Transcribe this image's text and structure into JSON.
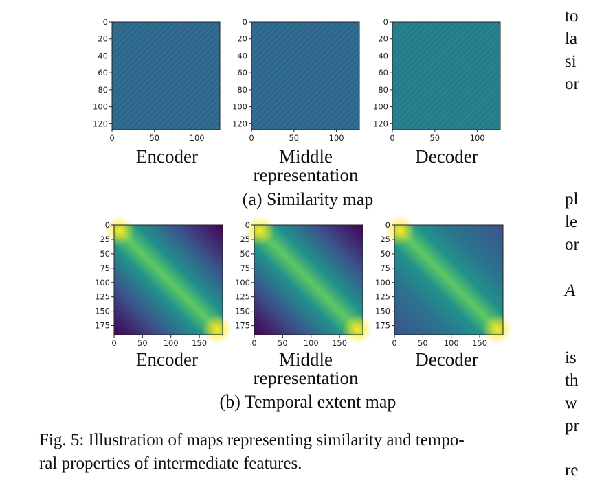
{
  "figure": {
    "caption_line1": "Fig. 5: Illustration of maps representing similarity and tempo-",
    "caption_line2": "ral properties of intermediate features."
  },
  "panel_a": {
    "caption": "(a) Similarity map",
    "maps": [
      {
        "label": [
          "Encoder"
        ]
      },
      {
        "label": [
          "Middle",
          "representation"
        ]
      },
      {
        "label": [
          "Decoder"
        ]
      }
    ]
  },
  "panel_b": {
    "caption": "(b) Temporal extent map",
    "maps": [
      {
        "label": [
          "Encoder"
        ]
      },
      {
        "label": [
          "Middle",
          "representation"
        ]
      },
      {
        "label": [
          "Decoder"
        ]
      }
    ]
  },
  "right_column_fragments": [
    "to",
    "la",
    "si",
    "or",
    "pl",
    "le",
    "or",
    "A",
    "is",
    "th",
    "w",
    "pr",
    "re"
  ],
  "chart_data": [
    {
      "type": "heatmap",
      "panel": "a",
      "xlabel": "Encoder",
      "x_ticks": [
        0,
        50,
        100
      ],
      "y_ticks": [
        0,
        20,
        40,
        60,
        80,
        100,
        120
      ],
      "xlim": [
        0,
        127
      ],
      "ylim": [
        127,
        0
      ],
      "pattern": "diagonal stripes",
      "colormap": "viridis"
    },
    {
      "type": "heatmap",
      "panel": "a",
      "xlabel": "Middle representation",
      "x_ticks": [
        0,
        50,
        100
      ],
      "y_ticks": [
        0,
        20,
        40,
        60,
        80,
        100,
        120
      ],
      "xlim": [
        0,
        127
      ],
      "ylim": [
        127,
        0
      ],
      "pattern": "diagonal stripes",
      "colormap": "viridis"
    },
    {
      "type": "heatmap",
      "panel": "a",
      "xlabel": "Decoder",
      "x_ticks": [
        0,
        50,
        100
      ],
      "y_ticks": [
        0,
        20,
        40,
        60,
        80,
        100,
        120
      ],
      "xlim": [
        0,
        127
      ],
      "ylim": [
        127,
        0
      ],
      "pattern": "diagonal stripes",
      "colormap": "viridis"
    },
    {
      "type": "heatmap",
      "panel": "b",
      "xlabel": "Encoder",
      "x_ticks": [
        0,
        50,
        100,
        150
      ],
      "y_ticks": [
        0,
        25,
        50,
        75,
        100,
        125,
        150,
        175
      ],
      "xlim": [
        0,
        191
      ],
      "ylim": [
        191,
        0
      ],
      "pattern": "diagonal band",
      "colormap": "viridis"
    },
    {
      "type": "heatmap",
      "panel": "b",
      "xlabel": "Middle representation",
      "x_ticks": [
        0,
        50,
        100,
        150
      ],
      "y_ticks": [
        0,
        25,
        50,
        75,
        100,
        125,
        150,
        175
      ],
      "xlim": [
        0,
        191
      ],
      "ylim": [
        191,
        0
      ],
      "pattern": "diagonal band",
      "colormap": "viridis"
    },
    {
      "type": "heatmap",
      "panel": "b",
      "xlabel": "Decoder",
      "x_ticks": [
        0,
        50,
        100,
        150
      ],
      "y_ticks": [
        0,
        25,
        50,
        75,
        100,
        125,
        150,
        175
      ],
      "xlim": [
        0,
        191
      ],
      "ylim": [
        191,
        0
      ],
      "pattern": "diagonal band",
      "colormap": "viridis"
    }
  ]
}
